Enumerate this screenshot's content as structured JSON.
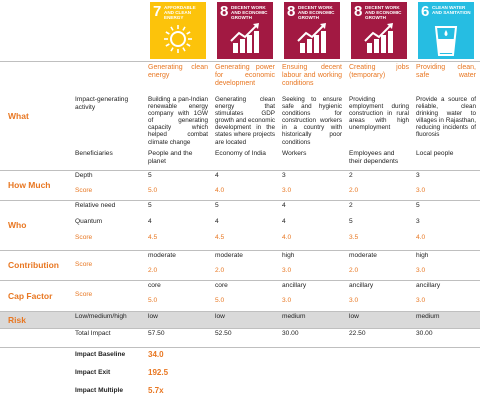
{
  "sdg_tiles": [
    {
      "number": "7",
      "label": "AFFORDABLE AND CLEAN ENERGY",
      "color": "#fcc30b"
    },
    {
      "number": "8",
      "label": "DECENT WORK AND ECONOMIC GROWTH",
      "color": "#a21942"
    },
    {
      "number": "8",
      "label": "DECENT WORK AND ECONOMIC GROWTH",
      "color": "#a21942"
    },
    {
      "number": "8",
      "label": "DECENT WORK AND ECONOMIC GROWTH",
      "color": "#a21942"
    },
    {
      "number": "6",
      "label": "CLEAN WATER AND SANITATION",
      "color": "#26bde2"
    }
  ],
  "table": {
    "columns": [
      "Generating clean energy",
      "Generating power for economic development",
      "Ensuing decent labour and working conditions",
      "Creating jobs (temporary)",
      "Providing clean, safe water"
    ],
    "groups": [
      {
        "section": "What",
        "rows": [
          {
            "label": "Impact-generating activity",
            "cells": [
              "Building a pan-Indian renewable energy company with 1GW of generating capacity which helped combat climate change",
              "Generating clean energy that stimulates GDP growth and economic development in the states where projects are located",
              "Seeking to ensure safe and hygienic conditions for construction workers in a country with historically poor conditions",
              "Providing employment during construction in rural areas with high unemployment",
              "Provide a source of reliable, clean drinking water to villages in Rajasthan, reducing incidents of fluorosis"
            ]
          },
          {
            "label": "Beneficiaries",
            "cells": [
              "People and the planet",
              "Economy of India",
              "Workers",
              "Employees and their dependents",
              "Local people"
            ]
          }
        ]
      },
      {
        "section": "How Much",
        "rows": [
          {
            "label": "Depth",
            "cells": [
              "5",
              "4",
              "3",
              "2",
              "3"
            ]
          },
          {
            "label": "Score",
            "cells": [
              "5.0",
              "4.0",
              "3.0",
              "2.0",
              "3.0"
            ]
          }
        ]
      },
      {
        "section": "Who",
        "rows": [
          {
            "label": "Relative need",
            "cells": [
              "5",
              "5",
              "4",
              "2",
              "5"
            ]
          },
          {
            "label": "Quantum",
            "cells": [
              "4",
              "4",
              "4",
              "5",
              "3"
            ]
          },
          {
            "label": "Score",
            "cells": [
              "4.5",
              "4.5",
              "4.0",
              "3.5",
              "4.0"
            ]
          }
        ]
      },
      {
        "section": "Contribution",
        "rows": [
          {
            "cells": [
              "moderate",
              "moderate",
              "high",
              "moderate",
              "high"
            ]
          },
          {
            "label": "Score",
            "cells": [
              "2.0",
              "2.0",
              "3.0",
              "2.0",
              "3.0"
            ]
          }
        ]
      },
      {
        "section": "Cap Factor",
        "rows": [
          {
            "cells": [
              "core",
              "core",
              "ancillary",
              "ancillary",
              "ancillary"
            ]
          },
          {
            "label": "Score",
            "cells": [
              "5.0",
              "5.0",
              "3.0",
              "3.0",
              "3.0"
            ]
          }
        ]
      },
      {
        "section": "Risk",
        "rows": [
          {
            "label": "Low/medium/high",
            "cells": [
              "low",
              "low",
              "medium",
              "low",
              "medium"
            ]
          }
        ]
      },
      {
        "rows": [
          {
            "label": "Total Impact",
            "cells": [
              "57.50",
              "52.50",
              "30.00",
              "22.50",
              "30.00"
            ]
          }
        ]
      }
    ]
  },
  "summary": [
    {
      "label": "Impact Baseline",
      "value": "34.0"
    },
    {
      "label": "Impact Exit",
      "value": "192.5"
    },
    {
      "label": "Impact Multiple",
      "value": "5.7x"
    }
  ]
}
